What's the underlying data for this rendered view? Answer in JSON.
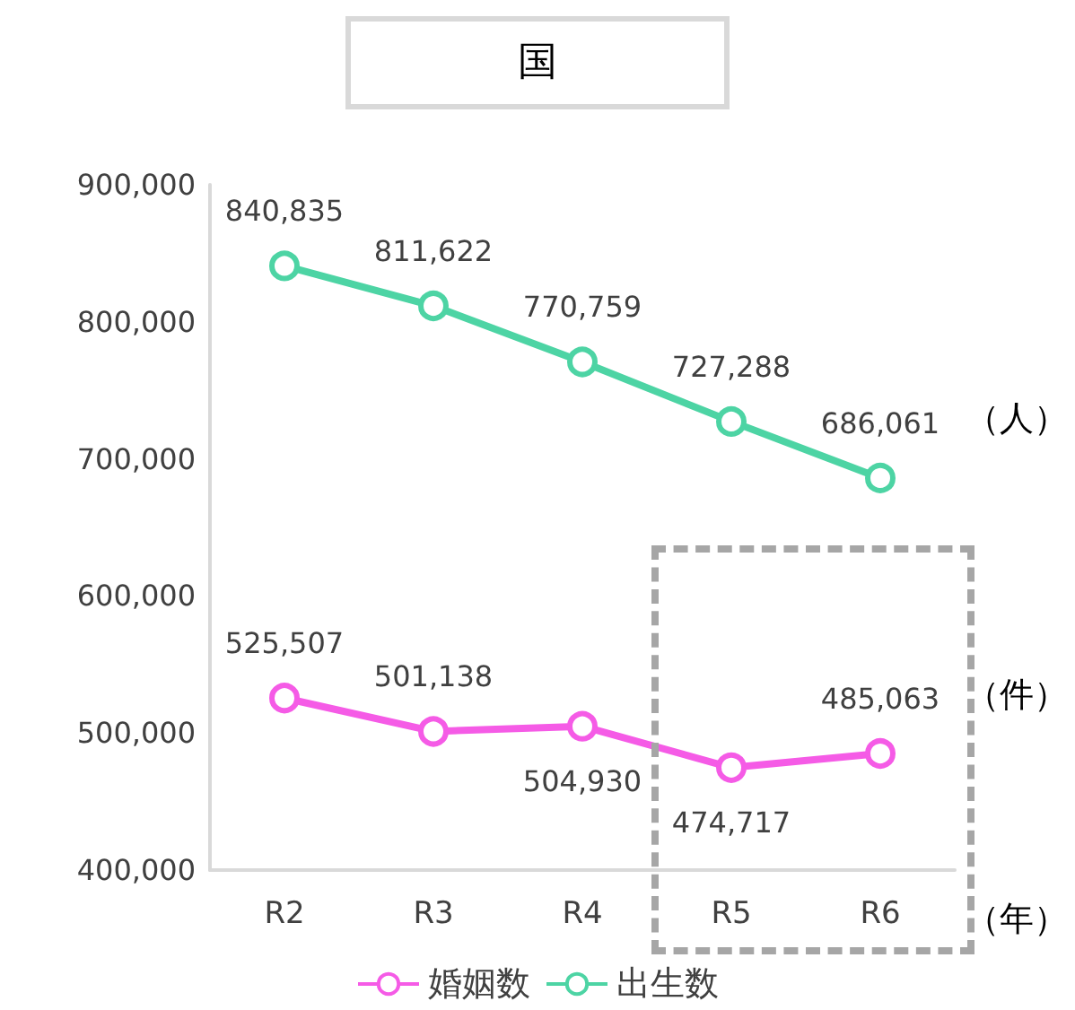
{
  "chart_data": {
    "type": "line",
    "title": "国",
    "categories": [
      "R2",
      "R3",
      "R4",
      "R5",
      "R6"
    ],
    "series": [
      {
        "name": "婚姻数",
        "color": "#f55be6",
        "values": [
          525507,
          501138,
          504930,
          474717,
          485063
        ],
        "value_labels": [
          "525,507",
          "501,138",
          "504,930",
          "474,717",
          "485,063"
        ]
      },
      {
        "name": "出生数",
        "color": "#4dd4a4",
        "values": [
          840835,
          811622,
          770759,
          727288,
          686061
        ],
        "value_labels": [
          "840,835",
          "811,622",
          "770,759",
          "727,288",
          "686,061"
        ]
      }
    ],
    "ylim": [
      400000,
      900000
    ],
    "yticks": [
      {
        "value": 400000,
        "label": "400,000"
      },
      {
        "value": 500000,
        "label": "500,000"
      },
      {
        "value": 600000,
        "label": "600,000"
      },
      {
        "value": 700000,
        "label": "700,000"
      },
      {
        "value": 800000,
        "label": "800,000"
      },
      {
        "value": 900000,
        "label": "900,000"
      }
    ],
    "grid": false,
    "legend": "bottom",
    "marker": "circle",
    "line_style": "solid",
    "annotations": [
      "（人）",
      "（件）",
      "（年）"
    ]
  }
}
